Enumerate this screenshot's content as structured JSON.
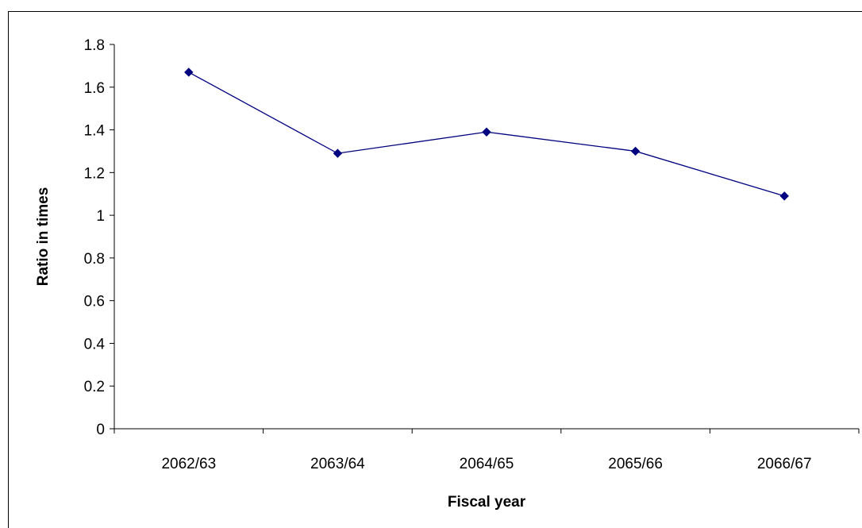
{
  "chart_data": {
    "type": "line",
    "title": "",
    "xlabel": "Fiscal year",
    "ylabel": "Ratio in times",
    "categories": [
      "2062/63",
      "2063/64",
      "2064/65",
      "2065/66",
      "2066/67"
    ],
    "series": [
      {
        "values": [
          1.67,
          1.29,
          1.39,
          1.3,
          1.09
        ]
      }
    ],
    "ylim": [
      0,
      1.8
    ],
    "yticks": [
      0,
      0.2,
      0.4,
      0.6,
      0.8,
      1,
      1.2,
      1.4,
      1.6,
      1.8
    ],
    "ytick_labels": [
      "0",
      "0.2",
      "0.4",
      "0.6",
      "0.8",
      "1",
      "1.2",
      "1.4",
      "1.6",
      "1.8"
    ],
    "grid": false,
    "legend": "none",
    "marker": "diamond",
    "line_color": "#000080"
  }
}
